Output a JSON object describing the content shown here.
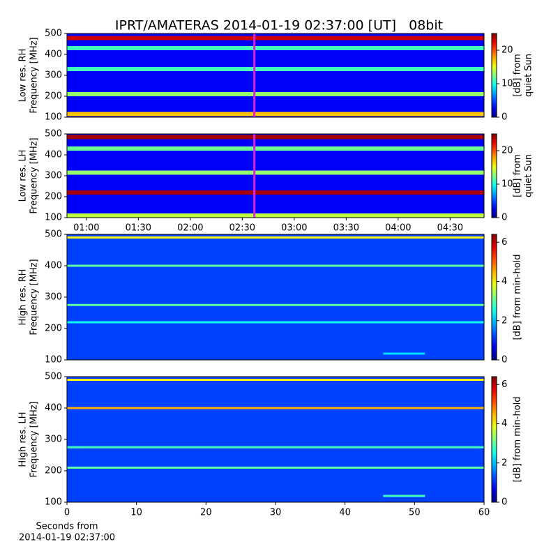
{
  "title": "IPRT/AMATERAS 2014-01-19 02:37:00 [UT]   08bit",
  "chart_data": [
    {
      "type": "spectrogram",
      "ylabel": [
        "Low res. RH",
        "Frequency [MHz]"
      ],
      "ylim": [
        100,
        500
      ],
      "yticks": [
        100,
        200,
        300,
        400,
        500
      ],
      "xlim": [
        48.8,
        289.6
      ],
      "background": 3,
      "marker_time": 157,
      "bands": [
        {
          "freq": 478,
          "level": 23
        },
        {
          "freq": 430,
          "level": 11
        },
        {
          "freq": 330,
          "level": 11
        },
        {
          "freq": 210,
          "level": 13
        },
        {
          "freq": 115,
          "level": 17
        }
      ],
      "clim": [
        0,
        25
      ],
      "cticks": [
        0,
        10,
        20
      ],
      "clabel": [
        "[dB] from",
        "quiet Sun"
      ]
    },
    {
      "type": "spectrogram",
      "ylabel": [
        "Low res. LH",
        "Frequency [MHz]"
      ],
      "ylim": [
        100,
        500
      ],
      "yticks": [
        100,
        200,
        300,
        400,
        500
      ],
      "xlim": [
        48.8,
        289.6
      ],
      "background": 3,
      "marker_time": 157,
      "xticks": [
        {
          "value": 60,
          "label": "01:00"
        },
        {
          "value": 90,
          "label": "01:30"
        },
        {
          "value": 120,
          "label": "02:00"
        },
        {
          "value": 150,
          "label": "02:30"
        },
        {
          "value": 180,
          "label": "03:00"
        },
        {
          "value": 210,
          "label": "03:30"
        },
        {
          "value": 240,
          "label": "04:00"
        },
        {
          "value": 270,
          "label": "04:30"
        }
      ],
      "bands": [
        {
          "freq": 485,
          "level": 24
        },
        {
          "freq": 430,
          "level": 12
        },
        {
          "freq": 315,
          "level": 13
        },
        {
          "freq": 220,
          "level": 24
        },
        {
          "freq": 110,
          "level": 14
        }
      ],
      "clim": [
        0,
        25
      ],
      "cticks": [
        0,
        10,
        20
      ],
      "clabel": [
        "[dB] from",
        "quiet Sun"
      ]
    },
    {
      "type": "spectrogram",
      "ylabel": [
        "High res. RH",
        "Frequency [MHz]"
      ],
      "ylim": [
        100,
        500
      ],
      "yticks": [
        100,
        200,
        300,
        400,
        500
      ],
      "xlim": [
        0,
        60
      ],
      "background": 1.2,
      "bands": [
        {
          "freq": 490,
          "level": 4
        },
        {
          "freq": 400,
          "level": 3
        },
        {
          "freq": 275,
          "level": 3
        },
        {
          "freq": 220,
          "level": 2.5
        },
        {
          "freq": 120,
          "level": 2.2,
          "x": [
            45.5,
            51.5
          ]
        }
      ],
      "clim": [
        0,
        6.4
      ],
      "cticks": [
        0,
        2,
        4,
        6
      ],
      "clabel": [
        "[dB] from min-hold"
      ]
    },
    {
      "type": "spectrogram",
      "ylabel": [
        "High res. LH",
        "Frequency [MHz]"
      ],
      "ylim": [
        100,
        500
      ],
      "yticks": [
        100,
        200,
        300,
        400,
        500
      ],
      "xlim": [
        0,
        60
      ],
      "xticks": [
        0,
        10,
        20,
        30,
        40,
        50,
        60
      ],
      "xlabel": [
        "Seconds from",
        "2014-01-19 02:37:00"
      ],
      "background": 1.2,
      "bands": [
        {
          "freq": 490,
          "level": 4
        },
        {
          "freq": 400,
          "level": 4.5
        },
        {
          "freq": 275,
          "level": 2.8
        },
        {
          "freq": 210,
          "level": 3
        },
        {
          "freq": 120,
          "level": 2.8,
          "x": [
            45.5,
            51.5
          ]
        }
      ],
      "clim": [
        0,
        6.4
      ],
      "cticks": [
        0,
        2,
        4,
        6
      ],
      "clabel": [
        "[dB] from min-hold"
      ]
    }
  ]
}
